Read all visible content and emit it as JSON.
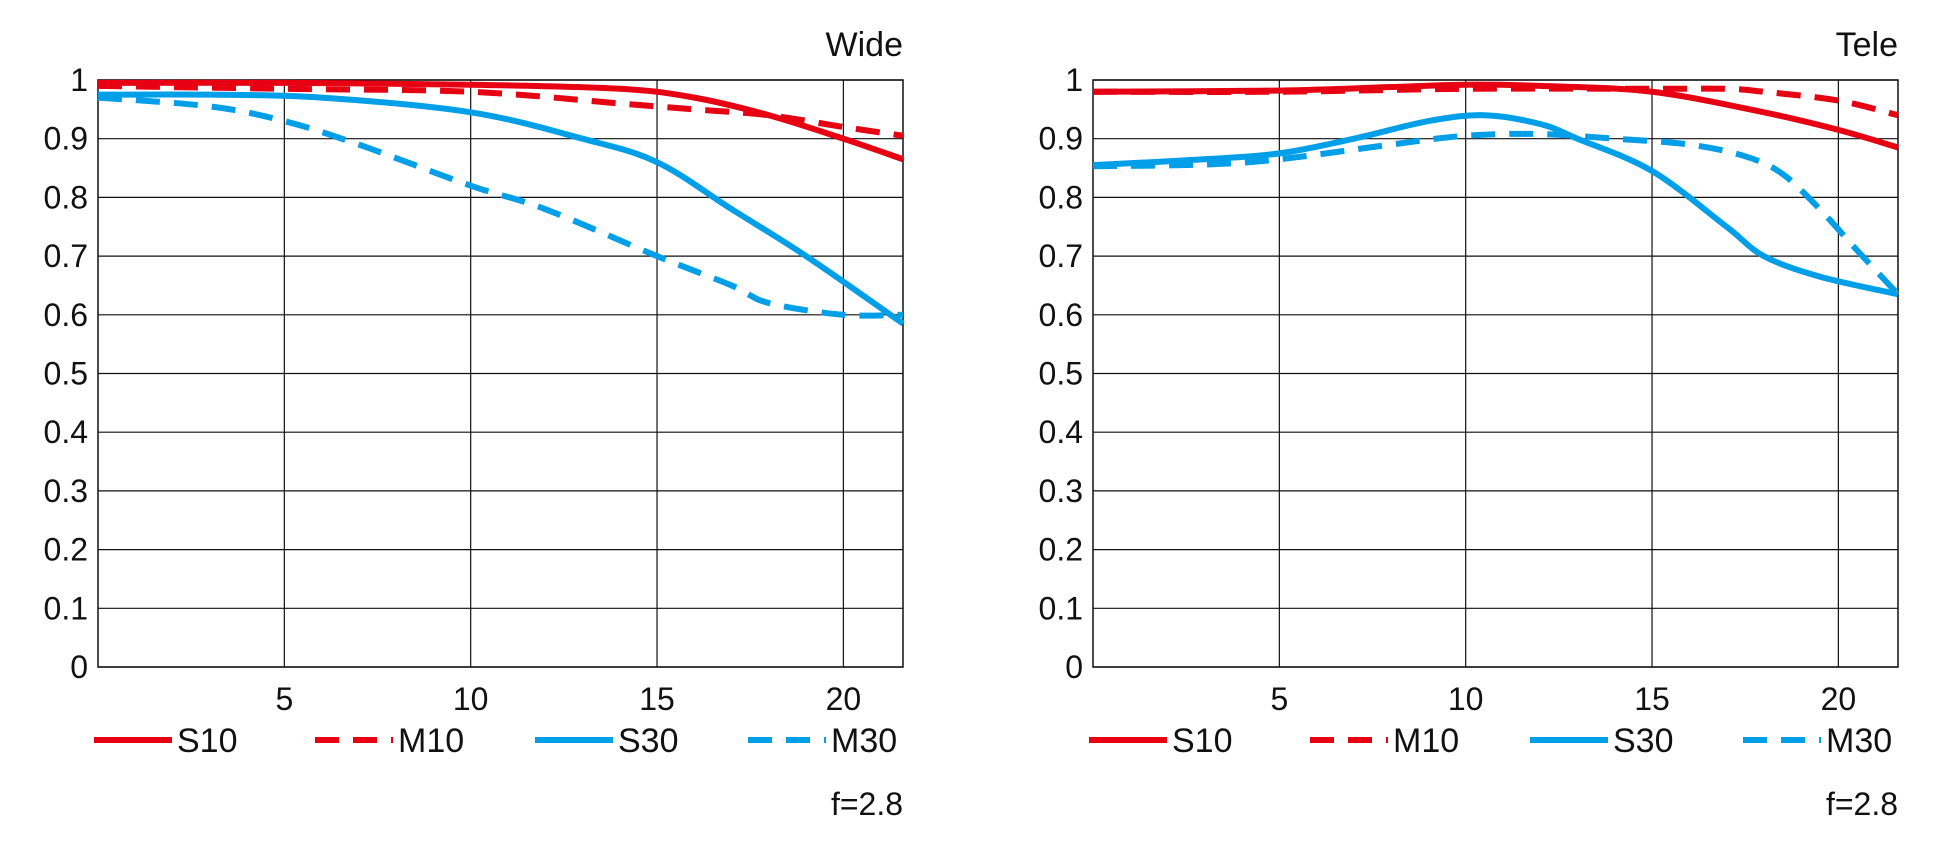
{
  "chart_data": [
    {
      "type": "line",
      "title": "Wide",
      "note": "f=2.8",
      "xlabel": "",
      "ylabel": "",
      "xlim": [
        0,
        21.6
      ],
      "ylim": [
        0,
        1
      ],
      "grid": true,
      "legend_position": "bottom",
      "x_ticks": [
        5,
        10,
        15,
        20
      ],
      "x_tick_labels": [
        "5",
        "10",
        "15",
        "20"
      ],
      "y_ticks": [
        0,
        0.1,
        0.2,
        0.3,
        0.4,
        0.5,
        0.6,
        0.7,
        0.8,
        0.9,
        1
      ],
      "y_tick_labels": [
        "0",
        "0.1",
        "0.2",
        "0.3",
        "0.4",
        "0.5",
        "0.6",
        "0.7",
        "0.8",
        "0.9",
        "1"
      ],
      "series": [
        {
          "name": "S10",
          "color": "#e60012",
          "style": "solid",
          "points": [
            [
              0,
              0.995
            ],
            [
              5,
              0.995
            ],
            [
              10,
              0.992
            ],
            [
              14,
              0.985
            ],
            [
              16,
              0.97
            ],
            [
              18,
              0.94
            ],
            [
              20,
              0.9
            ],
            [
              21.6,
              0.865
            ]
          ]
        },
        {
          "name": "M10",
          "color": "#e60012",
          "style": "dashed",
          "points": [
            [
              0,
              0.99
            ],
            [
              5,
              0.985
            ],
            [
              10,
              0.98
            ],
            [
              14,
              0.96
            ],
            [
              16,
              0.95
            ],
            [
              18,
              0.94
            ],
            [
              20,
              0.92
            ],
            [
              21.6,
              0.905
            ]
          ]
        },
        {
          "name": "S30",
          "color": "#009fe8",
          "style": "solid",
          "points": [
            [
              0,
              0.975
            ],
            [
              3,
              0.975
            ],
            [
              6,
              0.97
            ],
            [
              10,
              0.945
            ],
            [
              13,
              0.9
            ],
            [
              15,
              0.86
            ],
            [
              17,
              0.78
            ],
            [
              19,
              0.7
            ],
            [
              21.6,
              0.585
            ]
          ]
        },
        {
          "name": "M30",
          "color": "#009fe8",
          "style": "dashed",
          "points": [
            [
              0,
              0.97
            ],
            [
              3,
              0.955
            ],
            [
              5,
              0.93
            ],
            [
              7,
              0.89
            ],
            [
              10,
              0.82
            ],
            [
              12,
              0.78
            ],
            [
              15,
              0.7
            ],
            [
              17,
              0.65
            ],
            [
              18,
              0.62
            ],
            [
              20,
              0.6
            ],
            [
              21.6,
              0.6
            ]
          ]
        }
      ]
    },
    {
      "type": "line",
      "title": "Tele",
      "note": "f=2.8",
      "xlabel": "",
      "ylabel": "",
      "xlim": [
        0,
        21.6
      ],
      "ylim": [
        0,
        1
      ],
      "grid": true,
      "legend_position": "bottom",
      "x_ticks": [
        5,
        10,
        15,
        20
      ],
      "x_tick_labels": [
        "5",
        "10",
        "15",
        "20"
      ],
      "y_ticks": [
        0,
        0.1,
        0.2,
        0.3,
        0.4,
        0.5,
        0.6,
        0.7,
        0.8,
        0.9,
        1
      ],
      "y_tick_labels": [
        "0",
        "0.1",
        "0.2",
        "0.3",
        "0.4",
        "0.5",
        "0.6",
        "0.7",
        "0.8",
        "0.9",
        "1"
      ],
      "series": [
        {
          "name": "S10",
          "color": "#e60012",
          "style": "solid",
          "points": [
            [
              0,
              0.98
            ],
            [
              5,
              0.982
            ],
            [
              8,
              0.988
            ],
            [
              10,
              0.992
            ],
            [
              12,
              0.99
            ],
            [
              15,
              0.98
            ],
            [
              18,
              0.945
            ],
            [
              20,
              0.915
            ],
            [
              21.6,
              0.885
            ]
          ]
        },
        {
          "name": "M10",
          "color": "#e60012",
          "style": "dashed",
          "points": [
            [
              0,
              0.98
            ],
            [
              5,
              0.98
            ],
            [
              10,
              0.985
            ],
            [
              15,
              0.985
            ],
            [
              17,
              0.985
            ],
            [
              18,
              0.98
            ],
            [
              20,
              0.965
            ],
            [
              21.6,
              0.94
            ]
          ]
        },
        {
          "name": "S30",
          "color": "#009fe8",
          "style": "solid",
          "points": [
            [
              0,
              0.855
            ],
            [
              3,
              0.865
            ],
            [
              5,
              0.875
            ],
            [
              7,
              0.9
            ],
            [
              9,
              0.93
            ],
            [
              10.5,
              0.94
            ],
            [
              12,
              0.925
            ],
            [
              13,
              0.9
            ],
            [
              15,
              0.845
            ],
            [
              17,
              0.75
            ],
            [
              18,
              0.7
            ],
            [
              19.5,
              0.665
            ],
            [
              21.6,
              0.635
            ]
          ]
        },
        {
          "name": "M30",
          "color": "#009fe8",
          "style": "dashed",
          "points": [
            [
              0,
              0.853
            ],
            [
              3,
              0.856
            ],
            [
              5,
              0.865
            ],
            [
              8,
              0.89
            ],
            [
              10,
              0.905
            ],
            [
              12,
              0.908
            ],
            [
              14,
              0.9
            ],
            [
              16,
              0.89
            ],
            [
              17.5,
              0.87
            ],
            [
              18.5,
              0.84
            ],
            [
              19.5,
              0.78
            ],
            [
              20.5,
              0.71
            ],
            [
              21.6,
              0.635
            ]
          ]
        }
      ]
    }
  ]
}
